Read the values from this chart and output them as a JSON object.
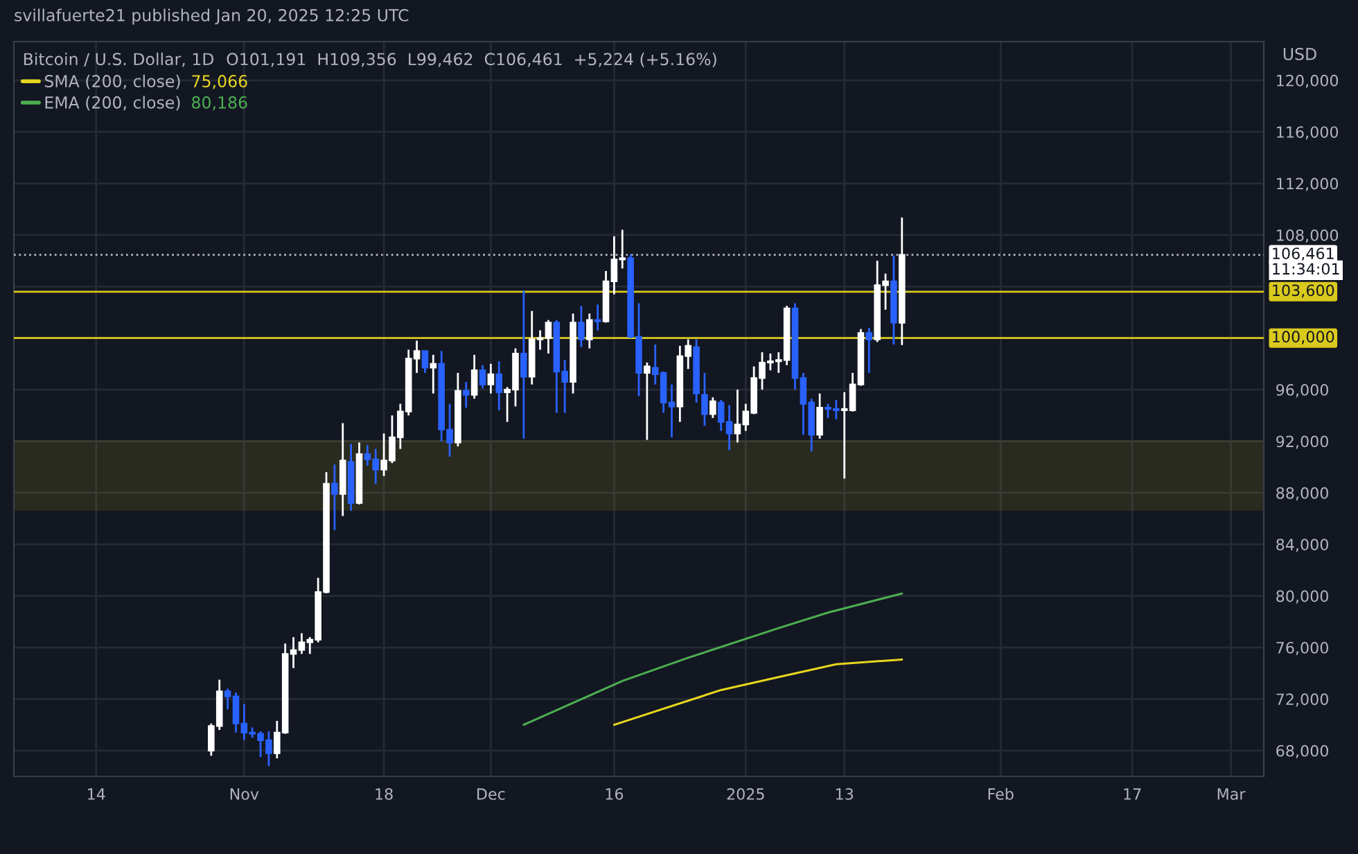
{
  "chart_data": {
    "type": "candlestick",
    "title": "Bitcoin / U.S. Dollar, 1D",
    "subtitle": "O101,191  H109,356  L99,462  C106,461  +5,224 (+5.16%)",
    "annotations": [
      "svillafuerte21 published Jan 20, 2025 12:25 UTC",
      "USD",
      "11:34:01",
      "75,066",
      "80,186"
    ],
    "x": [
      "2024-10-28",
      "2024-10-29",
      "2024-10-30",
      "2024-10-31",
      "2024-11-01",
      "2024-11-02",
      "2024-11-03",
      "2024-11-04",
      "2024-11-05",
      "2024-11-06",
      "2024-11-07",
      "2024-11-08",
      "2024-11-09",
      "2024-11-10",
      "2024-11-11",
      "2024-11-12",
      "2024-11-13",
      "2024-11-14",
      "2024-11-15",
      "2024-11-16",
      "2024-11-17",
      "2024-11-18",
      "2024-11-19",
      "2024-11-20",
      "2024-11-21",
      "2024-11-22",
      "2024-11-23",
      "2024-11-24",
      "2024-11-25",
      "2024-11-26",
      "2024-11-27",
      "2024-11-28",
      "2024-11-29",
      "2024-11-30",
      "2024-12-01",
      "2024-12-02",
      "2024-12-03",
      "2024-12-04",
      "2024-12-05",
      "2024-12-06",
      "2024-12-07",
      "2024-12-08",
      "2024-12-09",
      "2024-12-10",
      "2024-12-11",
      "2024-12-12",
      "2024-12-13",
      "2024-12-14",
      "2024-12-15",
      "2024-12-16",
      "2024-12-17",
      "2024-12-18",
      "2024-12-19",
      "2024-12-20",
      "2024-12-21",
      "2024-12-22",
      "2024-12-23",
      "2024-12-24",
      "2024-12-25",
      "2024-12-26",
      "2024-12-27",
      "2024-12-28",
      "2024-12-29",
      "2024-12-30",
      "2024-12-31",
      "2025-01-01",
      "2025-01-02",
      "2025-01-03",
      "2025-01-04",
      "2025-01-05",
      "2025-01-06",
      "2025-01-07",
      "2025-01-08",
      "2025-01-09",
      "2025-01-10",
      "2025-01-11",
      "2025-01-12",
      "2025-01-13",
      "2025-01-14",
      "2025-01-15",
      "2025-01-16",
      "2025-01-17",
      "2025-01-18",
      "2025-01-19",
      "2025-01-20"
    ],
    "ohlc": [
      [
        68000,
        70100,
        67600,
        69900
      ],
      [
        69900,
        73500,
        69600,
        72600
      ],
      [
        72600,
        72800,
        71200,
        72200
      ],
      [
        72200,
        72500,
        69400,
        70100
      ],
      [
        70100,
        71600,
        68800,
        69400
      ],
      [
        69400,
        69800,
        69000,
        69300
      ],
      [
        69300,
        69500,
        67500,
        68800
      ],
      [
        68800,
        69500,
        66800,
        67800
      ],
      [
        67800,
        70300,
        67400,
        69400
      ],
      [
        69400,
        76300,
        69300,
        75500
      ],
      [
        75500,
        76800,
        74400,
        75800
      ],
      [
        75800,
        77100,
        75500,
        76400
      ],
      [
        76400,
        76800,
        75500,
        76600
      ],
      [
        76600,
        81400,
        76400,
        80300
      ],
      [
        80300,
        89600,
        80200,
        88700
      ],
      [
        88700,
        90200,
        85100,
        87900
      ],
      [
        87900,
        93400,
        86200,
        90500
      ],
      [
        90400,
        91800,
        86600,
        87200
      ],
      [
        87200,
        91900,
        87100,
        91000
      ],
      [
        91000,
        91700,
        90100,
        90600
      ],
      [
        90600,
        91400,
        88700,
        89800
      ],
      [
        89800,
        92600,
        89300,
        90500
      ],
      [
        90500,
        94000,
        90300,
        92300
      ],
      [
        92300,
        94900,
        91400,
        94300
      ],
      [
        94300,
        99100,
        94000,
        98400
      ],
      [
        98400,
        99800,
        97300,
        99000
      ],
      [
        99000,
        99000,
        97300,
        97700
      ],
      [
        97700,
        98700,
        95700,
        98000
      ],
      [
        98000,
        99000,
        92000,
        92900
      ],
      [
        92900,
        94900,
        90800,
        91900
      ],
      [
        91900,
        97300,
        91600,
        95900
      ],
      [
        95900,
        96600,
        94600,
        95600
      ],
      [
        95600,
        98700,
        95300,
        97500
      ],
      [
        97500,
        97900,
        96100,
        96400
      ],
      [
        96400,
        98000,
        95700,
        97200
      ],
      [
        97200,
        98200,
        94400,
        95800
      ],
      [
        95800,
        96200,
        93500,
        96000
      ],
      [
        96000,
        99200,
        94700,
        98800
      ],
      [
        98800,
        103700,
        92200,
        97000
      ],
      [
        97000,
        102100,
        96400,
        99900
      ],
      [
        99900,
        100600,
        99100,
        100000
      ],
      [
        100000,
        101400,
        98800,
        101200
      ],
      [
        101200,
        101400,
        94200,
        97400
      ],
      [
        97400,
        98300,
        94200,
        96600
      ],
      [
        96600,
        101900,
        95700,
        101200
      ],
      [
        101200,
        102500,
        99300,
        99900
      ],
      [
        99900,
        101900,
        99200,
        101400
      ],
      [
        101400,
        102600,
        100600,
        101300
      ],
      [
        101300,
        105200,
        101200,
        104400
      ],
      [
        104400,
        107900,
        103400,
        106100
      ],
      [
        106100,
        108400,
        105400,
        106200
      ],
      [
        106200,
        106500,
        100000,
        100100
      ],
      [
        100100,
        102700,
        95500,
        97300
      ],
      [
        97300,
        98100,
        92100,
        97800
      ],
      [
        97700,
        99500,
        96400,
        97200
      ],
      [
        97300,
        97400,
        94200,
        95000
      ],
      [
        95000,
        96400,
        92300,
        94700
      ],
      [
        94700,
        99400,
        93500,
        98600
      ],
      [
        98600,
        99900,
        97600,
        99400
      ],
      [
        99300,
        99900,
        95000,
        95700
      ],
      [
        95600,
        97300,
        93200,
        94100
      ],
      [
        94100,
        95400,
        93800,
        95100
      ],
      [
        95000,
        95200,
        92800,
        93500
      ],
      [
        93500,
        94800,
        91300,
        92600
      ],
      [
        92600,
        96000,
        91900,
        93300
      ],
      [
        93300,
        94900,
        92800,
        94300
      ],
      [
        94200,
        97800,
        94100,
        96900
      ],
      [
        96900,
        98900,
        96000,
        98100
      ],
      [
        98100,
        98800,
        97500,
        98200
      ],
      [
        98200,
        98900,
        97300,
        98300
      ],
      [
        98300,
        102500,
        97900,
        102300
      ],
      [
        102300,
        102700,
        96000,
        96900
      ],
      [
        96900,
        97300,
        92500,
        94900
      ],
      [
        95000,
        95300,
        91200,
        92500
      ],
      [
        92500,
        95700,
        92200,
        94600
      ],
      [
        94600,
        94900,
        93800,
        94500
      ],
      [
        94500,
        95200,
        93700,
        94400
      ],
      [
        94400,
        95800,
        89100,
        94500
      ],
      [
        94400,
        97300,
        94300,
        96400
      ],
      [
        96400,
        100700,
        96300,
        100400
      ],
      [
        100400,
        100800,
        97300,
        99900
      ],
      [
        99900,
        106000,
        99700,
        104100
      ],
      [
        104100,
        105000,
        102200,
        104400
      ],
      [
        104400,
        106400,
        99500,
        101200
      ],
      [
        101191,
        109356,
        99462,
        106461
      ]
    ],
    "colors": [
      "#ffffff",
      "#ffffff",
      "#2962ff",
      "#2962ff",
      "#2962ff",
      "#2962ff",
      "#2962ff",
      "#2962ff",
      "#ffffff",
      "#ffffff",
      "#ffffff",
      "#ffffff",
      "#ffffff",
      "#ffffff",
      "#ffffff",
      "#2962ff",
      "#ffffff",
      "#2962ff",
      "#ffffff",
      "#2962ff",
      "#2962ff",
      "#ffffff",
      "#ffffff",
      "#ffffff",
      "#ffffff",
      "#ffffff",
      "#2962ff",
      "#ffffff",
      "#2962ff",
      "#2962ff",
      "#ffffff",
      "#2962ff",
      "#ffffff",
      "#2962ff",
      "#ffffff",
      "#2962ff",
      "#ffffff",
      "#ffffff",
      "#2962ff",
      "#ffffff",
      "#ffffff",
      "#ffffff",
      "#2962ff",
      "#2962ff",
      "#ffffff",
      "#2962ff",
      "#ffffff",
      "#2962ff",
      "#ffffff",
      "#ffffff",
      "#ffffff",
      "#2962ff",
      "#2962ff",
      "#ffffff",
      "#2962ff",
      "#2962ff",
      "#2962ff",
      "#ffffff",
      "#ffffff",
      "#2962ff",
      "#2962ff",
      "#ffffff",
      "#2962ff",
      "#2962ff",
      "#ffffff",
      "#ffffff",
      "#ffffff",
      "#ffffff",
      "#ffffff",
      "#ffffff",
      "#ffffff",
      "#2962ff",
      "#2962ff",
      "#2962ff",
      "#ffffff",
      "#2962ff",
      "#2962ff",
      "#ffffff",
      "#ffffff",
      "#ffffff",
      "#2962ff",
      "#ffffff",
      "#ffffff",
      "#2962ff",
      "#ffffff"
    ],
    "series": [
      {
        "name": "SMA (200, close)",
        "type": "line",
        "color": "#e8d61e",
        "x": [
          "2024-12-16",
          "2024-12-29",
          "2025-01-05",
          "2025-01-12",
          "2025-01-20"
        ],
        "values": [
          70000,
          72700,
          73700,
          74700,
          75066
        ]
      },
      {
        "name": "EMA (200, close)",
        "type": "line",
        "color": "#4caf50",
        "x": [
          "2024-12-05",
          "2024-12-17",
          "2024-12-25",
          "2025-01-05",
          "2025-01-11",
          "2025-01-20"
        ],
        "values": [
          70000,
          73400,
          75200,
          77500,
          78700,
          80186
        ]
      }
    ],
    "xlim": [
      "2024-10-04",
      "2025-03-05"
    ],
    "xticks": [
      {
        "value": "2024-10-14",
        "label": "14"
      },
      {
        "value": "2024-11-01",
        "label": "Nov"
      },
      {
        "value": "2024-11-18",
        "label": "18"
      },
      {
        "value": "2024-12-01",
        "label": "Dec"
      },
      {
        "value": "2024-12-16",
        "label": "16"
      },
      {
        "value": "2025-01-01",
        "label": "2025"
      },
      {
        "value": "2025-01-13",
        "label": "13"
      },
      {
        "value": "2025-02-01",
        "label": "Feb"
      },
      {
        "value": "2025-02-17",
        "label": "17"
      },
      {
        "value": "2025-03-01",
        "label": "Mar"
      }
    ],
    "ylim": [
      66000,
      123000
    ],
    "yticks": [
      {
        "value": 68000,
        "label": "68,000"
      },
      {
        "value": 72000,
        "label": "72,000"
      },
      {
        "value": 76000,
        "label": "76,000"
      },
      {
        "value": 80000,
        "label": "80,000"
      },
      {
        "value": 84000,
        "label": "84,000"
      },
      {
        "value": 88000,
        "label": "88,000"
      },
      {
        "value": 92000,
        "label": "92,000"
      },
      {
        "value": 96000,
        "label": "96,000"
      },
      {
        "value": 100000,
        "label": null
      },
      {
        "value": 104000,
        "label": null
      },
      {
        "value": 108000,
        "label": "108,000"
      },
      {
        "value": 112000,
        "label": "112,000"
      },
      {
        "value": 116000,
        "label": "116,000"
      },
      {
        "value": 120000,
        "label": "120,000"
      }
    ],
    "ref_lines": [
      {
        "axis": "y",
        "value": 103600,
        "label": "103,600",
        "color": "#d9c91c",
        "line_style": "solid"
      },
      {
        "axis": "y",
        "value": 100000,
        "label": "100,000",
        "color": "#d9c91c",
        "line_style": "solid"
      },
      {
        "axis": "y",
        "value": 106461,
        "label": "106,461",
        "color": "#b2b5be",
        "line_style": "dotted"
      }
    ],
    "bands": [
      {
        "axis": "y",
        "from": 86700,
        "to": 92000,
        "color": "#c9b820"
      }
    ],
    "grid": true,
    "legend": "top left"
  }
}
